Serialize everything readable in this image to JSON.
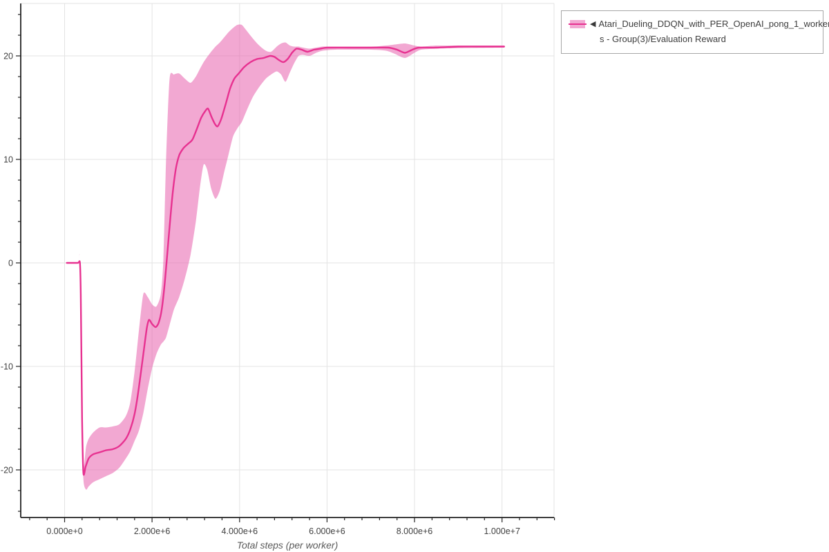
{
  "figure": {
    "legend": {
      "marker": "◀",
      "label_lines": [
        "Atari_Dueling_DDQN_with_PER_OpenAI_pong_1_worker",
        "s - Group(3)/Evaluation Reward"
      ]
    },
    "colors": {
      "line": "#e73190",
      "band": "#e761ad",
      "band_opacity": 0.55,
      "legend_band_swatch": "#f2a8d2",
      "grid": "#e3e3e3",
      "spine": "#222222",
      "tick_text": "#3f3f3f",
      "axis_title_text": "#595959",
      "legend_border": "#a6a6a6",
      "legend_text": "#3c3c3c",
      "background": "#ffffff"
    }
  },
  "chart_data": {
    "type": "line",
    "xlabel": "Total steps (per worker)",
    "ylabel": "",
    "grid": "major",
    "legend_position": "top-right",
    "x_range": [
      -1003000,
      11190000
    ],
    "y_range": [
      -24.6,
      25.07
    ],
    "x_ticks": {
      "values": [
        0,
        2000000,
        4000000,
        6000000,
        8000000,
        10000000
      ],
      "labels": [
        "0.000e+0",
        "2.000e+6",
        "4.000e+6",
        "6.000e+6",
        "8.000e+6",
        "1.000e+7"
      ]
    },
    "x_minor_step": 400000,
    "x_minor_range": [
      -800000,
      11200000
    ],
    "y_ticks": {
      "values": [
        -20,
        -10,
        0,
        10,
        20
      ],
      "labels": [
        "-20",
        "-10",
        "0",
        "10",
        "20"
      ]
    },
    "y_minor_step": 2,
    "y_minor_range": [
      -24,
      24
    ],
    "series": [
      {
        "name": "Atari_Dueling_DDQN_with_PER_OpenAI_pong_1_workers - Group(3)/Evaluation Reward",
        "points": [
          [
            50000,
            0
          ],
          [
            300000,
            0
          ],
          [
            350000,
            0
          ],
          [
            370000,
            -3
          ],
          [
            400000,
            -15
          ],
          [
            430000,
            -20.3
          ],
          [
            480000,
            -19.7
          ],
          [
            550000,
            -18.9
          ],
          [
            650000,
            -18.5
          ],
          [
            800000,
            -18.3
          ],
          [
            950000,
            -18.1
          ],
          [
            1100000,
            -18.0
          ],
          [
            1250000,
            -17.7
          ],
          [
            1400000,
            -17.0
          ],
          [
            1500000,
            -16.1
          ],
          [
            1600000,
            -14.6
          ],
          [
            1700000,
            -12.0
          ],
          [
            1800000,
            -8.8
          ],
          [
            1880000,
            -6.3
          ],
          [
            1930000,
            -5.5
          ],
          [
            2000000,
            -5.9
          ],
          [
            2080000,
            -6.2
          ],
          [
            2150000,
            -5.8
          ],
          [
            2220000,
            -4.5
          ],
          [
            2300000,
            -1.5
          ],
          [
            2380000,
            2.5
          ],
          [
            2460000,
            6.3
          ],
          [
            2540000,
            9.0
          ],
          [
            2620000,
            10.4
          ],
          [
            2720000,
            11.1
          ],
          [
            2820000,
            11.5
          ],
          [
            2920000,
            11.9
          ],
          [
            3020000,
            12.9
          ],
          [
            3120000,
            14.0
          ],
          [
            3220000,
            14.7
          ],
          [
            3280000,
            14.9
          ],
          [
            3360000,
            14.1
          ],
          [
            3440000,
            13.4
          ],
          [
            3500000,
            13.2
          ],
          [
            3580000,
            13.9
          ],
          [
            3680000,
            15.3
          ],
          [
            3780000,
            16.8
          ],
          [
            3880000,
            17.8
          ],
          [
            3980000,
            18.3
          ],
          [
            4100000,
            18.9
          ],
          [
            4250000,
            19.4
          ],
          [
            4400000,
            19.7
          ],
          [
            4550000,
            19.8
          ],
          [
            4700000,
            20.0
          ],
          [
            4800000,
            19.9
          ],
          [
            4900000,
            19.6
          ],
          [
            5000000,
            19.4
          ],
          [
            5100000,
            19.7
          ],
          [
            5200000,
            20.3
          ],
          [
            5300000,
            20.7
          ],
          [
            5420000,
            20.6
          ],
          [
            5550000,
            20.4
          ],
          [
            5700000,
            20.6
          ],
          [
            5850000,
            20.7
          ],
          [
            6000000,
            20.8
          ],
          [
            6500000,
            20.8
          ],
          [
            7000000,
            20.8
          ],
          [
            7400000,
            20.8
          ],
          [
            7600000,
            20.6
          ],
          [
            7780000,
            20.3
          ],
          [
            7950000,
            20.6
          ],
          [
            8100000,
            20.8
          ],
          [
            8500000,
            20.8
          ],
          [
            9000000,
            20.9
          ],
          [
            9500000,
            20.9
          ],
          [
            10050000,
            20.9
          ]
        ],
        "band": [
          [
            50000,
            0,
            0
          ],
          [
            300000,
            0,
            0
          ],
          [
            350000,
            0,
            0
          ],
          [
            400000,
            -15.5,
            -14.5
          ],
          [
            430000,
            -20.9,
            -19.8
          ],
          [
            490000,
            -21.9,
            -17.8
          ],
          [
            550000,
            -21.6,
            -17.0
          ],
          [
            650000,
            -21.2,
            -16.4
          ],
          [
            800000,
            -20.9,
            -15.9
          ],
          [
            950000,
            -20.6,
            -15.9
          ],
          [
            1100000,
            -20.3,
            -15.8
          ],
          [
            1250000,
            -19.8,
            -15.6
          ],
          [
            1400000,
            -18.9,
            -14.8
          ],
          [
            1500000,
            -18.2,
            -13.5
          ],
          [
            1600000,
            -17.2,
            -10.5
          ],
          [
            1700000,
            -16.2,
            -6.5
          ],
          [
            1800000,
            -14.5,
            -3.0
          ],
          [
            1900000,
            -12.2,
            -3.3
          ],
          [
            2000000,
            -10.2,
            -4.0
          ],
          [
            2100000,
            -8.8,
            -4.2
          ],
          [
            2200000,
            -7.9,
            -3.0
          ],
          [
            2260000,
            -7.6,
            0.5
          ],
          [
            2320000,
            -7.2,
            10.0
          ],
          [
            2400000,
            -6.0,
            17.8
          ],
          [
            2500000,
            -4.5,
            18.2
          ],
          [
            2620000,
            -3.3,
            18.3
          ],
          [
            2750000,
            -1.5,
            17.8
          ],
          [
            2880000,
            0.8,
            17.4
          ],
          [
            3000000,
            4.0,
            18.0
          ],
          [
            3100000,
            7.5,
            18.8
          ],
          [
            3180000,
            9.5,
            19.4
          ],
          [
            3260000,
            9.0,
            19.9
          ],
          [
            3350000,
            7.2,
            20.4
          ],
          [
            3450000,
            6.2,
            20.9
          ],
          [
            3550000,
            7.0,
            21.3
          ],
          [
            3650000,
            8.8,
            21.8
          ],
          [
            3750000,
            10.5,
            22.3
          ],
          [
            3850000,
            12.2,
            22.7
          ],
          [
            3950000,
            13.0,
            23.0
          ],
          [
            4050000,
            13.6,
            23.0
          ],
          [
            4150000,
            14.6,
            22.5
          ],
          [
            4300000,
            16.0,
            21.7
          ],
          [
            4450000,
            17.0,
            21.0
          ],
          [
            4600000,
            17.8,
            20.5
          ],
          [
            4720000,
            18.2,
            20.4
          ],
          [
            4850000,
            18.5,
            20.9
          ],
          [
            4950000,
            18.2,
            21.2
          ],
          [
            5050000,
            17.5,
            21.3
          ],
          [
            5150000,
            18.4,
            21.0
          ],
          [
            5250000,
            19.3,
            20.9
          ],
          [
            5350000,
            20.0,
            20.9
          ],
          [
            5450000,
            20.1,
            20.8
          ],
          [
            5600000,
            20.0,
            20.7
          ],
          [
            5750000,
            20.3,
            20.8
          ],
          [
            5900000,
            20.5,
            20.9
          ],
          [
            6200000,
            20.6,
            20.9
          ],
          [
            7000000,
            20.6,
            20.9
          ],
          [
            7350000,
            20.5,
            21.0
          ],
          [
            7550000,
            20.2,
            21.1
          ],
          [
            7780000,
            19.8,
            21.2
          ],
          [
            8000000,
            20.3,
            21.0
          ],
          [
            8150000,
            20.6,
            20.9
          ],
          [
            8500000,
            20.7,
            21.0
          ],
          [
            9000000,
            20.75,
            21.0
          ],
          [
            10050000,
            20.8,
            21.0
          ]
        ]
      }
    ]
  }
}
